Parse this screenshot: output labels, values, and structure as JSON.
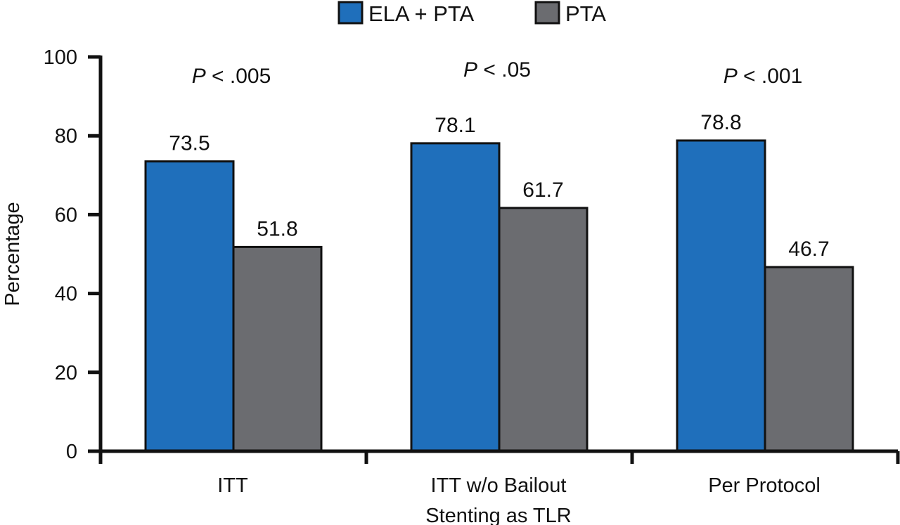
{
  "chart_data": {
    "type": "bar",
    "title": "",
    "xlabel": "",
    "ylabel": "Percentage",
    "ylim": [
      0,
      100
    ],
    "yticks": [
      0,
      20,
      40,
      60,
      80,
      100
    ],
    "grid": false,
    "legend_position": "top-center",
    "categories": [
      [
        "ITT"
      ],
      [
        "ITT w/o Bailout",
        "Stenting as TLR"
      ],
      [
        "Per Protocol"
      ]
    ],
    "series": [
      {
        "name": "ELA + PTA",
        "color": "#1f6fbb",
        "values": [
          73.5,
          78.1,
          78.8
        ]
      },
      {
        "name": "PTA",
        "color": "#6b6c70",
        "values": [
          51.8,
          61.7,
          46.7
        ]
      }
    ],
    "value_labels": [
      [
        "73.5",
        "78.1",
        "78.8"
      ],
      [
        "51.8",
        "61.7",
        "46.7"
      ]
    ],
    "annotations": [
      {
        "italic": "P",
        "rest": " <  .005"
      },
      {
        "italic": "P",
        "rest": " <  .05"
      },
      {
        "italic": "P",
        "rest": " <  .001"
      }
    ]
  }
}
